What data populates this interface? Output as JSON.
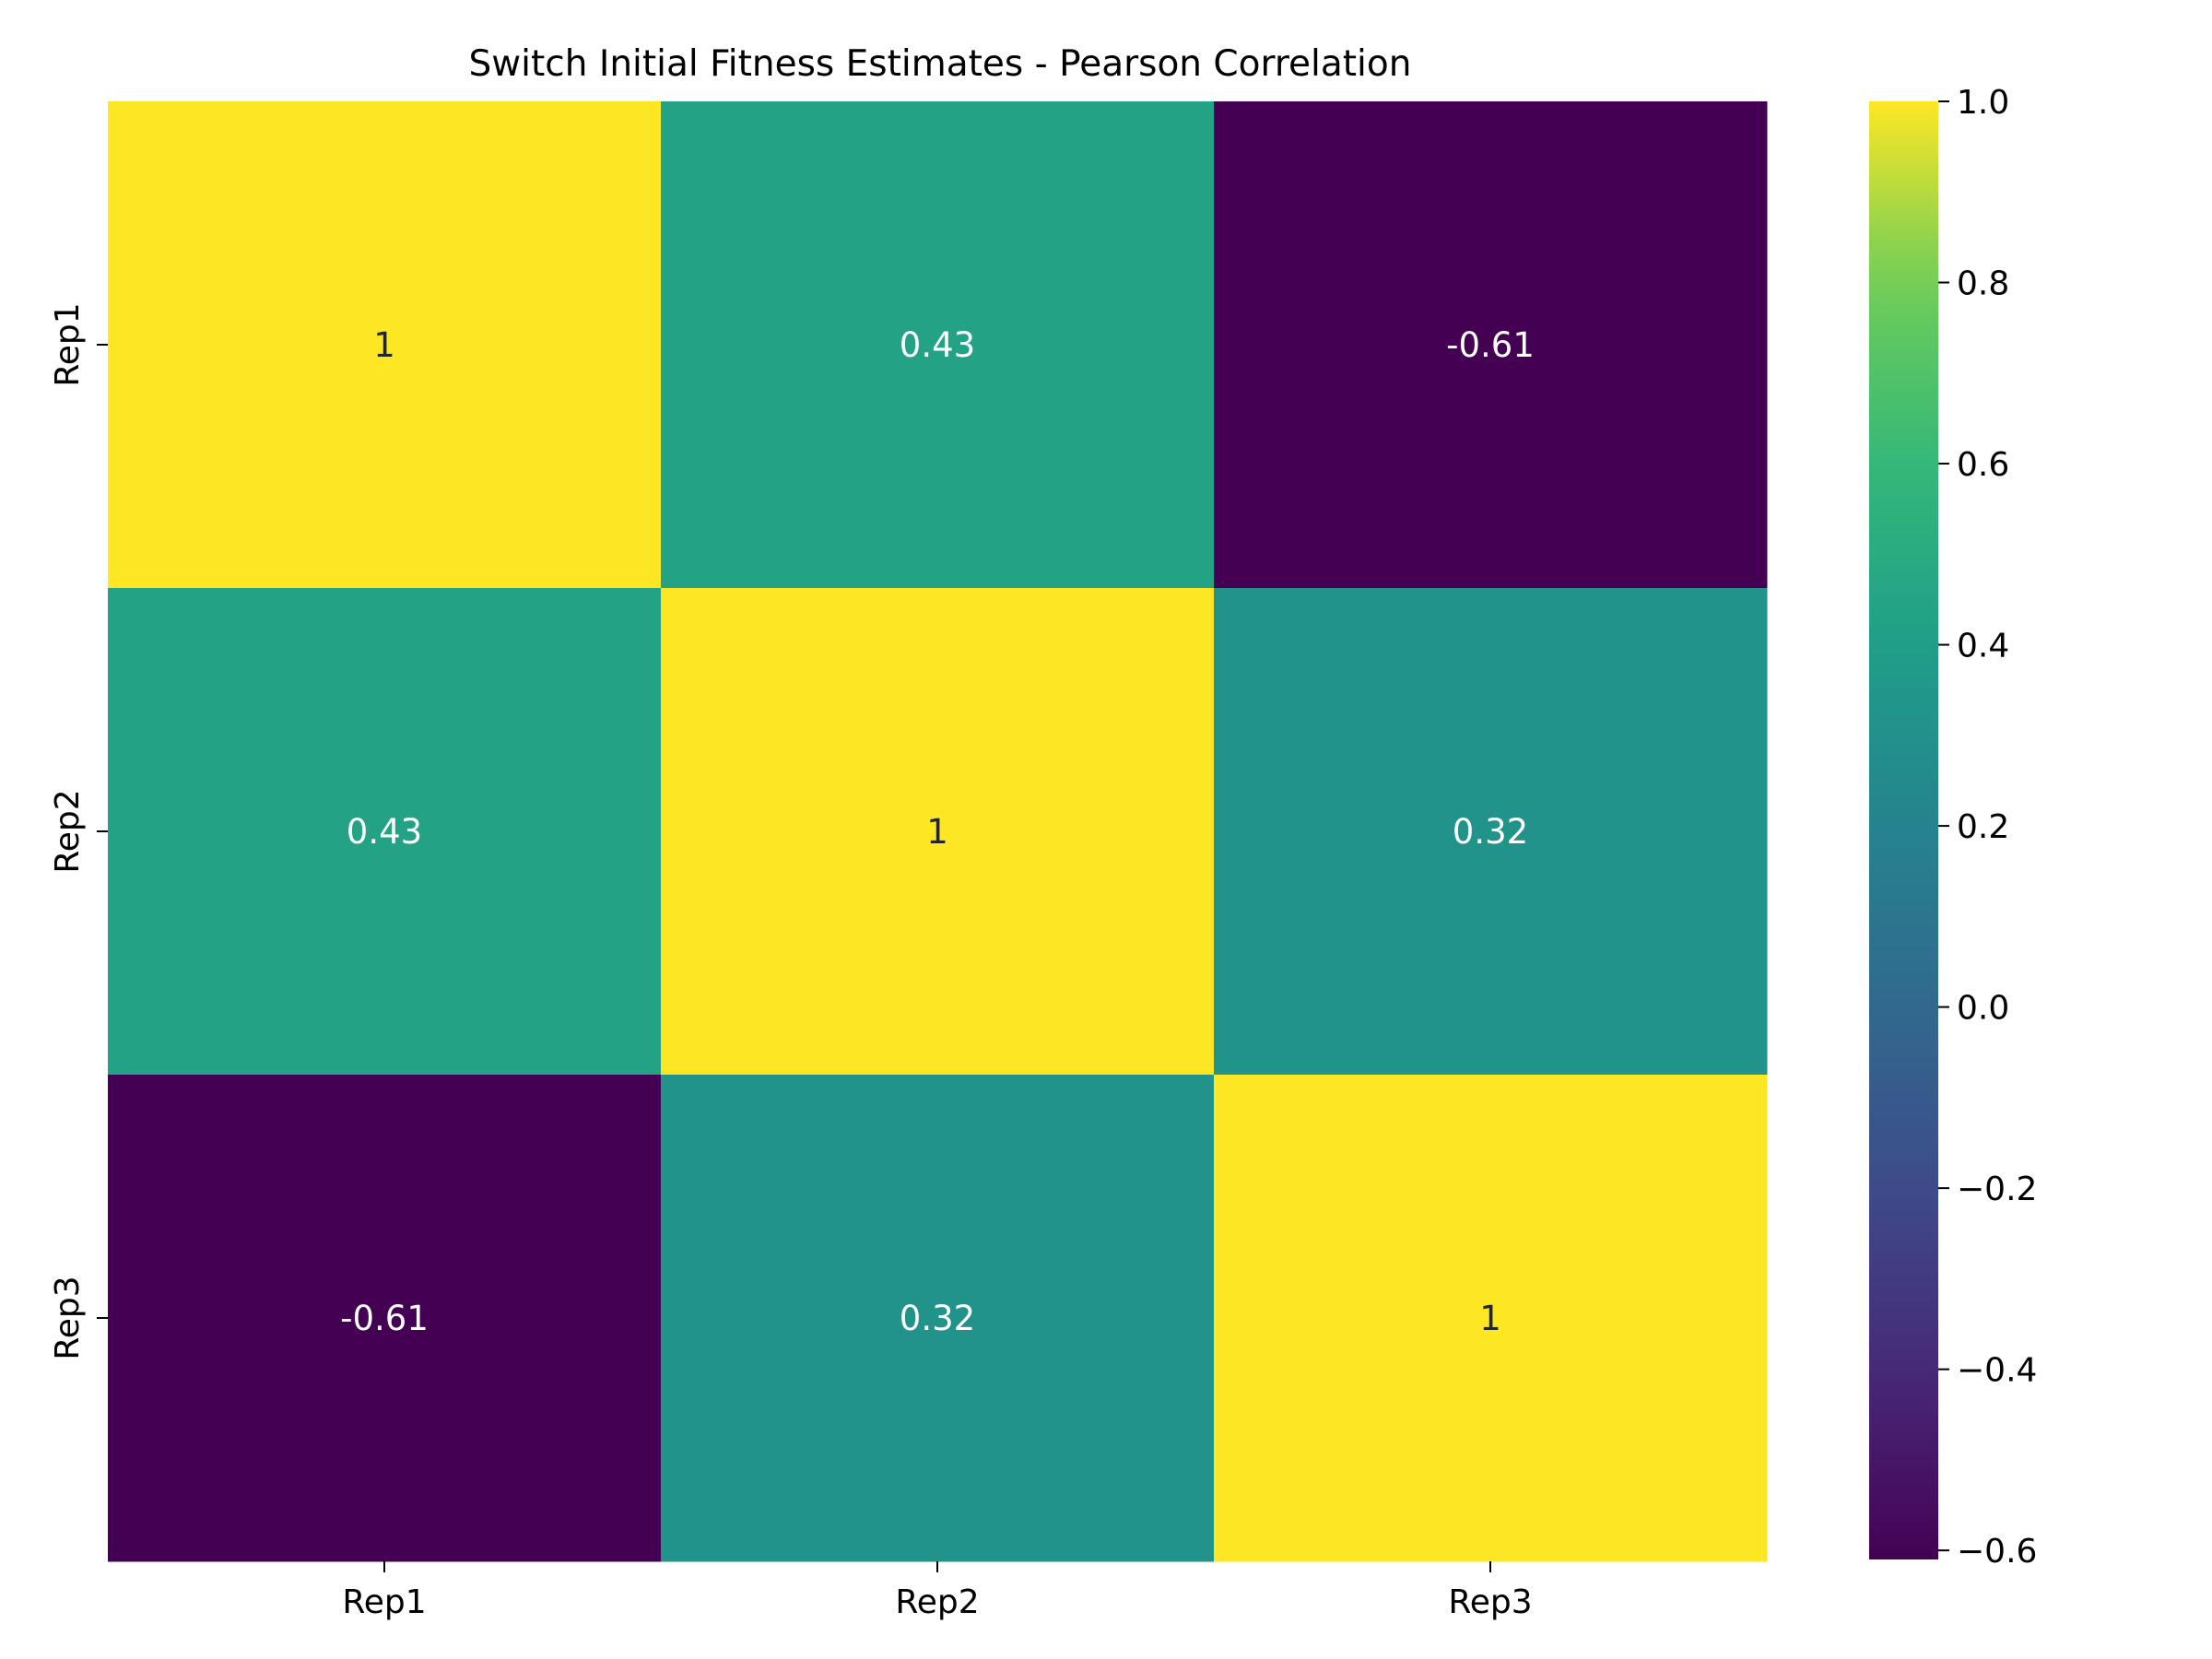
{
  "chart_data": {
    "type": "heatmap",
    "title": "Switch Initial Fitness Estimates - Pearson Correlation",
    "x_categories": [
      "Rep1",
      "Rep2",
      "Rep3"
    ],
    "y_categories": [
      "Rep1",
      "Rep2",
      "Rep3"
    ],
    "values": [
      [
        1,
        0.43,
        -0.61
      ],
      [
        0.43,
        1,
        0.32
      ],
      [
        -0.61,
        0.32,
        1
      ]
    ],
    "cell_labels": [
      [
        "1",
        "0.43",
        "-0.61"
      ],
      [
        "0.43",
        "1",
        "0.32"
      ],
      [
        "-0.61",
        "0.32",
        "1"
      ]
    ],
    "colormap": "viridis",
    "colorbar": {
      "range": [
        -0.61,
        1
      ],
      "ticks": [
        -0.6,
        -0.4,
        -0.2,
        0.0,
        0.2,
        0.4,
        0.6,
        0.8,
        1.0
      ],
      "tick_labels": [
        "−0.6",
        "−0.4",
        "−0.2",
        "0.0",
        "0.2",
        "0.4",
        "0.6",
        "0.8",
        "1.0"
      ]
    },
    "grid": false
  }
}
